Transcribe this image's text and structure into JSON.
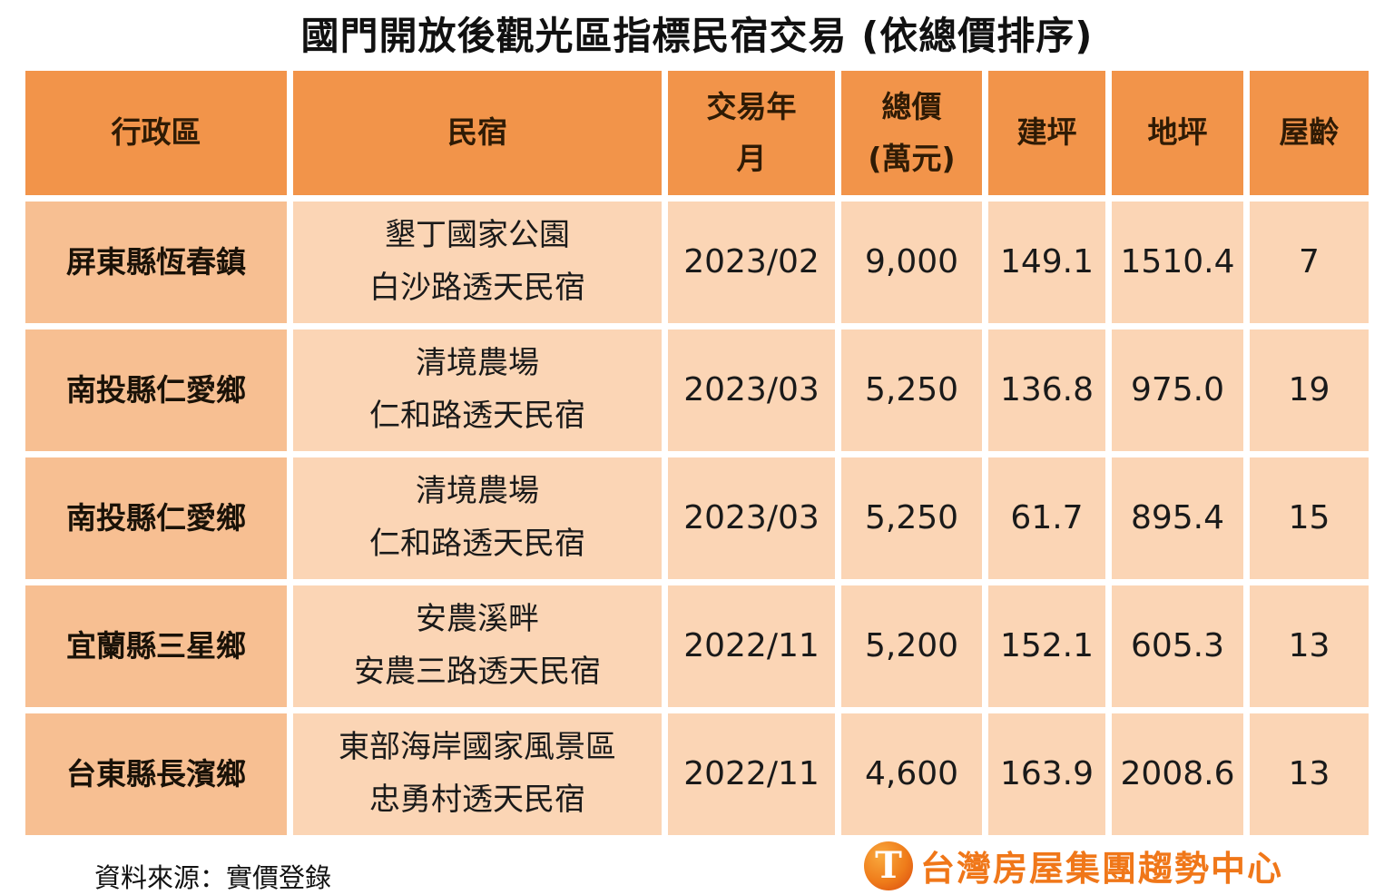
{
  "title": "國門開放後觀光區指標民宿交易 (依總價排序)",
  "colors": {
    "header_bg": "#F2944A",
    "district_col_bg": "#F7BF92",
    "cell_bg": "#FBD5B5",
    "brand_orange": "#F07719"
  },
  "chart_data": {
    "type": "table",
    "title": "國門開放後觀光區指標民宿交易 (依總價排序)",
    "columns": [
      "行政區",
      "民宿",
      "交易年月",
      "總價(萬元)",
      "建坪",
      "地坪",
      "屋齡"
    ],
    "rows": [
      [
        "屏東縣恆春鎮",
        "墾丁國家公園 白沙路透天民宿",
        "2023/02",
        "9,000",
        "149.1",
        "1510.4",
        "7"
      ],
      [
        "南投縣仁愛鄉",
        "清境農場 仁和路透天民宿",
        "2023/03",
        "5,250",
        "136.8",
        "975.0",
        "19"
      ],
      [
        "南投縣仁愛鄉",
        "清境農場 仁和路透天民宿",
        "2023/03",
        "5,250",
        "61.7",
        "895.4",
        "15"
      ],
      [
        "宜蘭縣三星鄉",
        "安農溪畔 安農三路透天民宿",
        "2022/11",
        "5,200",
        "152.1",
        "605.3",
        "13"
      ],
      [
        "台東縣長濱鄉",
        "東部海岸國家風景區 忠勇村透天民宿",
        "2022/11",
        "4,600",
        "163.9",
        "2008.6",
        "13"
      ]
    ]
  },
  "table": {
    "headers": [
      "行政區",
      "民宿",
      "交易年\n月",
      "總價\n(萬元)",
      "建坪",
      "地坪",
      "屋齡"
    ],
    "rows": [
      {
        "district": "屏東縣恆春鎮",
        "name": "墾丁國家公園\n白沙路透天民宿",
        "date": "2023/02",
        "price": "9,000",
        "building": "149.1",
        "land": "1510.4",
        "age": "7"
      },
      {
        "district": "南投縣仁愛鄉",
        "name": "清境農場\n仁和路透天民宿",
        "date": "2023/03",
        "price": "5,250",
        "building": "136.8",
        "land": "975.0",
        "age": "19"
      },
      {
        "district": "南投縣仁愛鄉",
        "name": "清境農場\n仁和路透天民宿",
        "date": "2023/03",
        "price": "5,250",
        "building": "61.7",
        "land": "895.4",
        "age": "15"
      },
      {
        "district": "宜蘭縣三星鄉",
        "name": "安農溪畔\n安農三路透天民宿",
        "date": "2022/11",
        "price": "5,200",
        "building": "152.1",
        "land": "605.3",
        "age": "13"
      },
      {
        "district": "台東縣長濱鄉",
        "name": "東部海岸國家風景區\n忠勇村透天民宿",
        "date": "2022/11",
        "price": "4,600",
        "building": "163.9",
        "land": "2008.6",
        "age": "13"
      }
    ]
  },
  "footer": {
    "source": "資料來源：實價登錄",
    "logo_icon": "T",
    "logo_text": "台灣房屋集團趨勢中心"
  }
}
